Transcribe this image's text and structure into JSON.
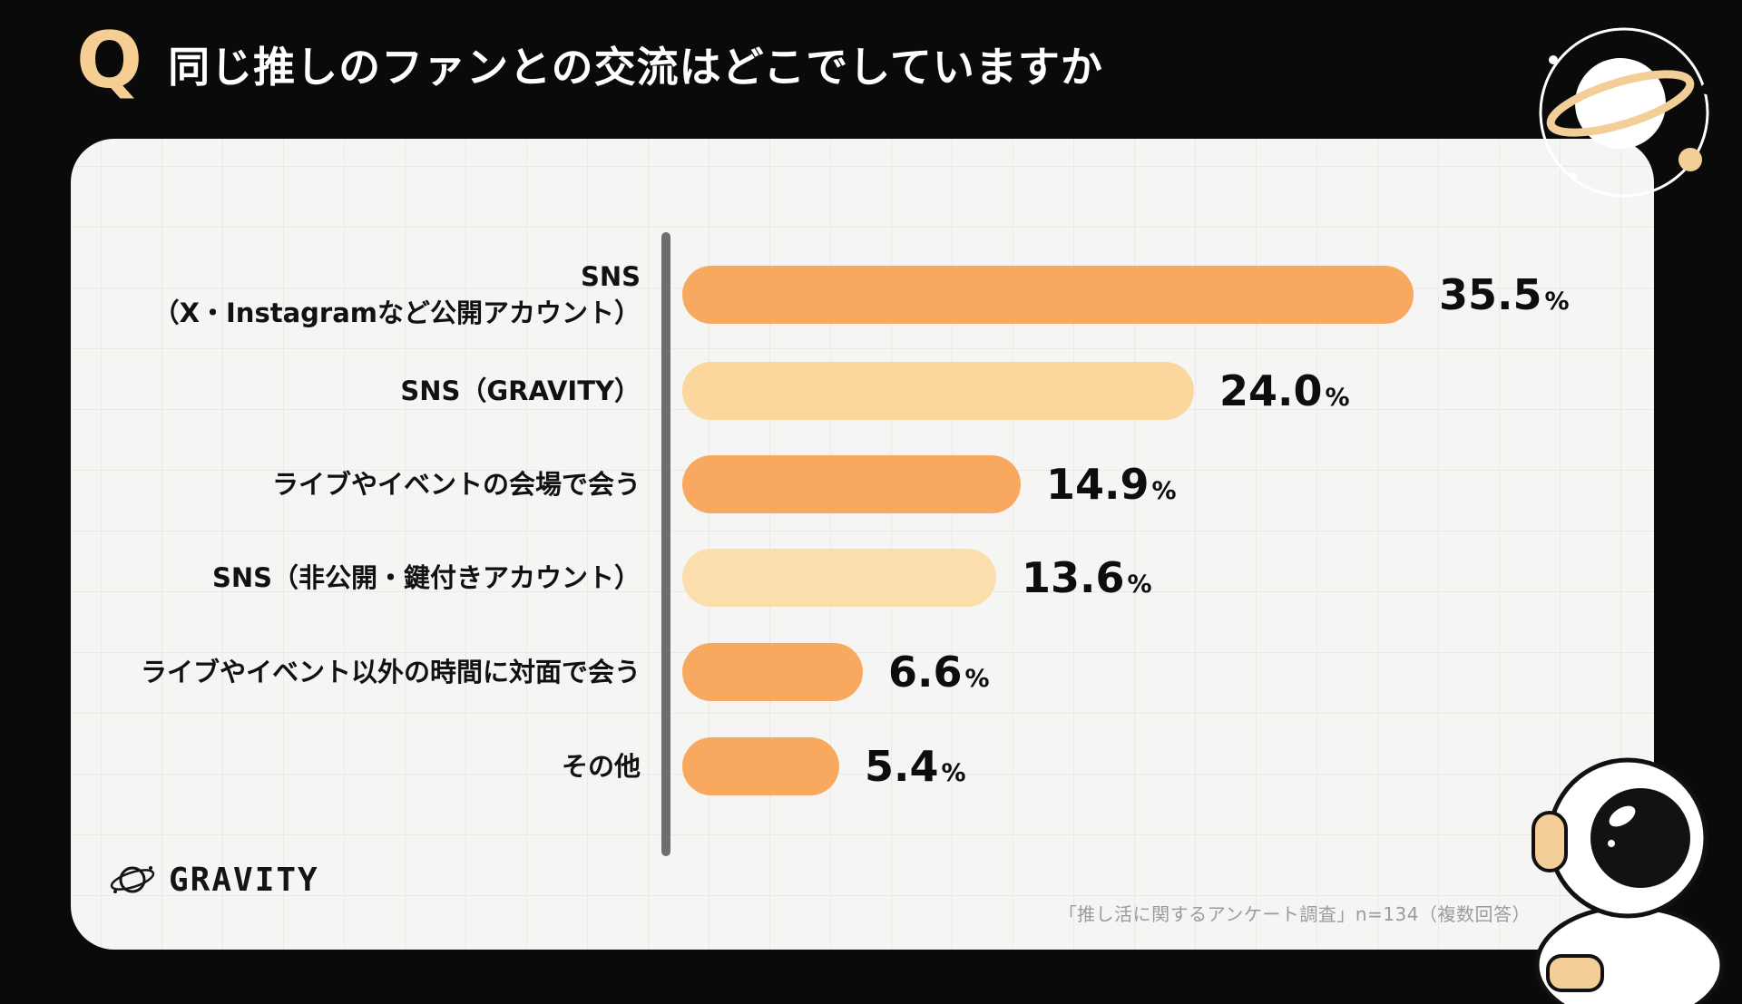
{
  "header": {
    "q_badge": "Q",
    "title": "同じ推しのファンとの交流はどこでしていますか"
  },
  "chart_data": {
    "type": "bar",
    "orientation": "horizontal",
    "title": "同じ推しのファンとの交流はどこでしていますか",
    "categories": [
      "SNS\n（X・Instagramなど公開アカウント）",
      "SNS（GRAVITY）",
      "ライブやイベントの会場で会う",
      "SNS（非公開・鍵付きアカウント）",
      "ライブやイベント以外の時間に対面で会う",
      "その他"
    ],
    "values": [
      35.5,
      24.0,
      14.9,
      13.6,
      6.6,
      5.4
    ],
    "value_labels": [
      "35.5",
      "24.0",
      "14.9",
      "13.6",
      "6.6",
      "5.4"
    ],
    "unit": "%",
    "xlim": [
      0,
      40
    ],
    "bar_colors": [
      "#F9A95F",
      "#FBD69D",
      "#F9A95F",
      "#FCDEAD",
      "#F9A95F",
      "#F9A95F"
    ],
    "axis_color": "#6E6E6E",
    "grid": true,
    "legend_position": "none"
  },
  "footer": {
    "brand": "GRAVITY",
    "source_note": "「推し活に関するアンケート調査」n=134（複数回答）"
  },
  "colors": {
    "background": "#0A0A0A",
    "card": "#F5F5F3",
    "grid_line": "#E9E9E6",
    "accent_orange": "#F9A95F",
    "accent_cream": "#FBD69D",
    "title_text": "#FFFFFF",
    "label_text": "#111111",
    "note_text": "#9B9B9B"
  },
  "illustrations": {
    "top_right": "saturn-planet-doodle",
    "bottom_right": "astronaut-doodle",
    "logo_icon": "planet-doodle"
  }
}
